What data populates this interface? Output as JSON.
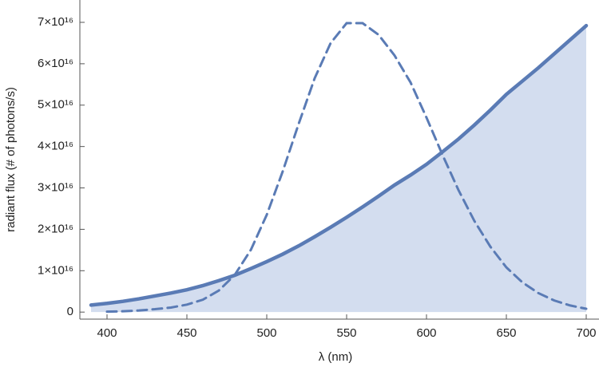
{
  "chart_data": {
    "type": "line",
    "xlabel": "λ (nm)",
    "ylabel": "radiant flux (# of photons/s)",
    "x": [
      390,
      400,
      410,
      420,
      430,
      440,
      450,
      460,
      470,
      480,
      490,
      500,
      510,
      520,
      530,
      540,
      550,
      560,
      570,
      580,
      590,
      600,
      610,
      620,
      630,
      640,
      650,
      660,
      670,
      680,
      690,
      700
    ],
    "series": [
      {
        "color": "#5a7bb5",
        "style": "solid",
        "fill": "#d3ddef",
        "values": [
          1700000000000000.0,
          2100000000000000.0,
          2600000000000000.0,
          3200000000000000.0,
          3900000000000000.0,
          4600000000000000.0,
          5400000000000000.0,
          6400000000000000.0,
          7600000000000000.0,
          8900000000000000.0,
          1.05e+16,
          1.22e+16,
          1.4e+16,
          1.6e+16,
          1.82e+16,
          2.05e+16,
          2.29e+16,
          2.54e+16,
          2.8e+16,
          3.07e+16,
          3.31e+16,
          3.57e+16,
          3.87e+16,
          4.18e+16,
          4.52e+16,
          4.88e+16,
          5.26e+16,
          5.58e+16,
          5.9e+16,
          6.24e+16,
          6.58e+16,
          6.92e+16
        ]
      },
      {
        "color": "#5a7bb5",
        "style": "dashed",
        "values": [
          null,
          100000000000000.0,
          200000000000000.0,
          400000000000000.0,
          700000000000000.0,
          1100000000000000.0,
          1800000000000000.0,
          3000000000000000.0,
          5200000000000000.0,
          9000000000000000.0,
          1.5e+16,
          2.35e+16,
          3.4e+16,
          4.55e+16,
          5.65e+16,
          6.5e+16,
          6.98e+16,
          6.98e+16,
          6.7e+16,
          6.2e+16,
          5.55e+16,
          4.7e+16,
          3.8e+16,
          2.95e+16,
          2.2e+16,
          1.58e+16,
          1.08e+16,
          7200000000000000.0,
          4600000000000000.0,
          2800000000000000.0,
          1600000000000000.0,
          800000000000000.0
        ]
      }
    ],
    "xlim": [
      383,
      708
    ],
    "ylim": [
      -1700000000000000.0,
      7.54e+16
    ],
    "xticks": [
      400,
      450,
      500,
      550,
      600,
      650,
      700
    ],
    "yticks": [
      0,
      {
        "value": 1e+16,
        "label": "1×10¹⁶"
      },
      {
        "value": 2e+16,
        "label": "2×10¹⁶"
      },
      {
        "value": 3e+16,
        "label": "3×10¹⁶"
      },
      {
        "value": 4e+16,
        "label": "4×10¹⁶"
      },
      {
        "value": 5e+16,
        "label": "5×10¹⁶"
      },
      {
        "value": 6e+16,
        "label": "6×10¹⁶"
      },
      {
        "value": 7e+16,
        "label": "7×10¹⁶"
      }
    ]
  }
}
